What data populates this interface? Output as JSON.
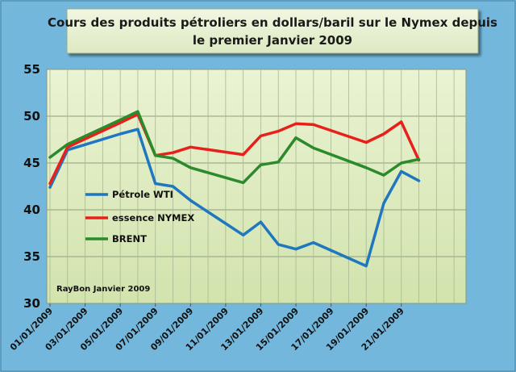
{
  "chart_data": {
    "type": "line",
    "title": [
      "Cours des produits pétroliers en dollars/baril sur le Nymex depuis",
      "le premier Janvier 2009"
    ],
    "credit": "RayBon Janvier 2009",
    "ylim": [
      30,
      55
    ],
    "yticks": [
      "30",
      "35",
      "40",
      "45",
      "50",
      "55"
    ],
    "xlim": [
      1,
      24.5
    ],
    "xtick_labels": [
      "01/01/2009",
      "03/01/2009",
      "05/01/2009",
      "07/01/2009",
      "09/01/2009",
      "11/01/2009",
      "13/01/2009",
      "15/01/2009",
      "17/01/2009",
      "19/01/2009",
      "21/01/2009"
    ],
    "grid": true,
    "legend_position": "center-left",
    "series": [
      {
        "name": "Pétrole WTI",
        "color": "#1f77c0",
        "x": [
          1,
          2,
          5,
          6,
          7,
          8,
          9,
          12,
          13,
          14,
          15,
          16,
          19,
          20,
          21,
          22
        ],
        "values": [
          42.4,
          46.4,
          48.1,
          48.6,
          42.8,
          42.5,
          41.0,
          37.3,
          38.7,
          36.3,
          35.8,
          36.5,
          34.0,
          40.7,
          44.1,
          43.1
        ]
      },
      {
        "name": "essence NYMEX",
        "color": "#e8201c",
        "x": [
          1,
          2,
          5,
          6,
          7,
          8,
          9,
          12,
          13,
          14,
          15,
          16,
          19,
          20,
          21,
          22
        ],
        "values": [
          42.8,
          46.7,
          49.3,
          50.2,
          45.8,
          46.1,
          46.7,
          45.9,
          47.9,
          48.4,
          49.2,
          49.1,
          47.2,
          48.1,
          49.4,
          45.3
        ]
      },
      {
        "name": "BRENT",
        "color": "#2b8a2b",
        "x": [
          1,
          2,
          5,
          6,
          7,
          8,
          9,
          12,
          13,
          14,
          15,
          16,
          19,
          20,
          21,
          22
        ],
        "values": [
          45.6,
          47.0,
          49.6,
          50.5,
          45.8,
          45.5,
          44.5,
          42.9,
          44.8,
          45.1,
          47.7,
          46.6,
          44.5,
          43.7,
          45.0,
          45.4
        ]
      }
    ]
  }
}
